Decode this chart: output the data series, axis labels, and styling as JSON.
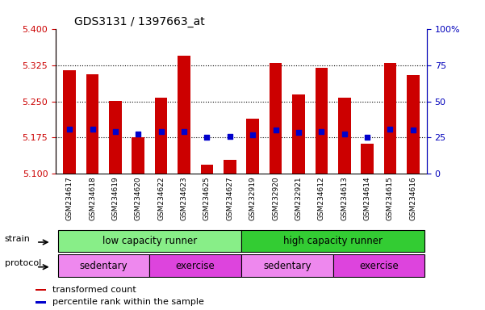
{
  "title": "GDS3131 / 1397663_at",
  "samples": [
    "GSM234617",
    "GSM234618",
    "GSM234619",
    "GSM234620",
    "GSM234622",
    "GSM234623",
    "GSM234625",
    "GSM234627",
    "GSM232919",
    "GSM232920",
    "GSM232921",
    "GSM234612",
    "GSM234613",
    "GSM234614",
    "GSM234615",
    "GSM234616"
  ],
  "bar_values": [
    5.315,
    5.307,
    5.252,
    5.175,
    5.258,
    5.345,
    5.118,
    5.128,
    5.215,
    5.33,
    5.265,
    5.32,
    5.258,
    5.163,
    5.33,
    5.305
  ],
  "dot_values": [
    5.192,
    5.193,
    5.188,
    5.182,
    5.187,
    5.188,
    5.175,
    5.178,
    5.18,
    5.19,
    5.185,
    5.187,
    5.182,
    5.175,
    5.193,
    5.19
  ],
  "ylim_left": [
    5.1,
    5.4
  ],
  "ylim_right": [
    0,
    100
  ],
  "yticks_left": [
    5.1,
    5.175,
    5.25,
    5.325,
    5.4
  ],
  "yticks_right": [
    0,
    25,
    50,
    75,
    100
  ],
  "bar_color": "#cc0000",
  "dot_color": "#0000cc",
  "bar_bottom": 5.1,
  "strain_groups": [
    {
      "label": "low capacity runner",
      "start": 0,
      "end": 8,
      "color": "#88ee88"
    },
    {
      "label": "high capacity runner",
      "start": 8,
      "end": 16,
      "color": "#33cc33"
    }
  ],
  "protocol_groups": [
    {
      "label": "sedentary",
      "start": 0,
      "end": 4,
      "color": "#ee88ee"
    },
    {
      "label": "exercise",
      "start": 4,
      "end": 8,
      "color": "#dd44dd"
    },
    {
      "label": "sedentary",
      "start": 8,
      "end": 12,
      "color": "#ee88ee"
    },
    {
      "label": "exercise",
      "start": 12,
      "end": 16,
      "color": "#dd44dd"
    }
  ],
  "legend_items": [
    {
      "label": "transformed count",
      "color": "#cc0000"
    },
    {
      "label": "percentile rank within the sample",
      "color": "#0000cc"
    }
  ],
  "background_color": "#ffffff",
  "tick_label_color_left": "#cc0000",
  "tick_label_color_right": "#0000bb",
  "xtick_bg_color": "#cccccc",
  "xtick_border_color": "#999999"
}
